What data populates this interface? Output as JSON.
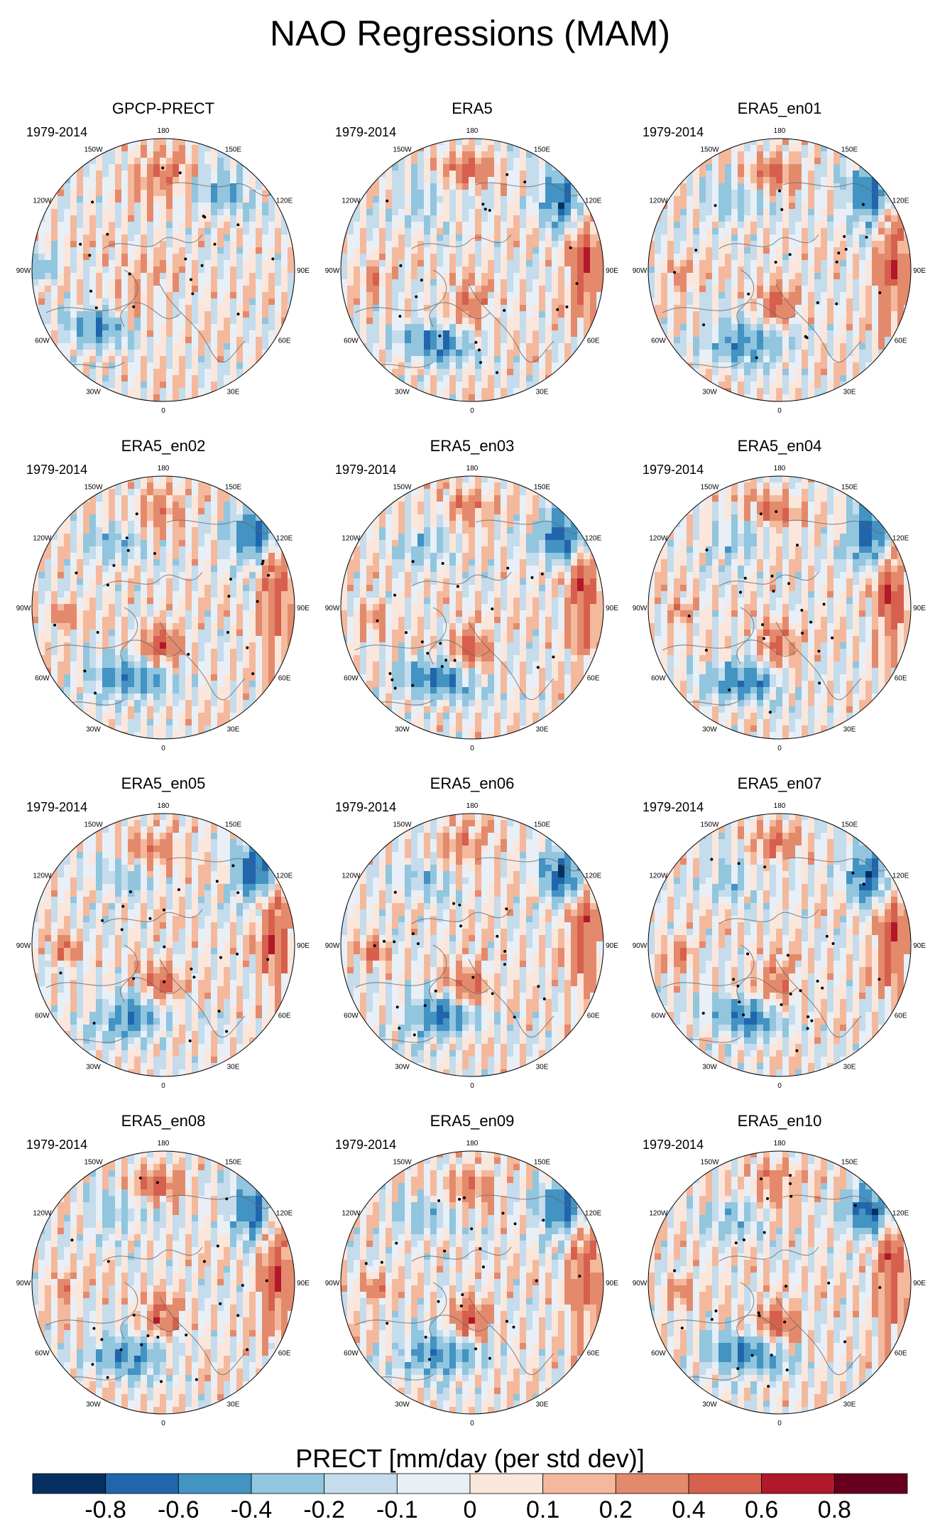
{
  "title": "NAO Regressions (MAM)",
  "panels": [
    {
      "name": "GPCP-PRECT",
      "period": "1979-2014"
    },
    {
      "name": "ERA5",
      "period": "1979-2014"
    },
    {
      "name": "ERA5_en01",
      "period": "1979-2014"
    },
    {
      "name": "ERA5_en02",
      "period": "1979-2014"
    },
    {
      "name": "ERA5_en03",
      "period": "1979-2014"
    },
    {
      "name": "ERA5_en04",
      "period": "1979-2014"
    },
    {
      "name": "ERA5_en05",
      "period": "1979-2014"
    },
    {
      "name": "ERA5_en06",
      "period": "1979-2014"
    },
    {
      "name": "ERA5_en07",
      "period": "1979-2014"
    },
    {
      "name": "ERA5_en08",
      "period": "1979-2014"
    },
    {
      "name": "ERA5_en09",
      "period": "1979-2014"
    },
    {
      "name": "ERA5_en10",
      "period": "1979-2014"
    }
  ],
  "longitude_labels": [
    "180",
    "150E",
    "120E",
    "90E",
    "60E",
    "30E",
    "0",
    "30W",
    "60W",
    "90W",
    "120W",
    "150W"
  ],
  "longitude_degrees": [
    180,
    150,
    120,
    90,
    60,
    30,
    0,
    -30,
    -60,
    -90,
    -120,
    -150
  ],
  "colorbar": {
    "title": "PRECT [mm/day (per std dev)]",
    "levels": [
      "-0.8",
      "-0.6",
      "-0.4",
      "-0.2",
      "-0.1",
      "0",
      "0.1",
      "0.2",
      "0.4",
      "0.6",
      "0.8"
    ],
    "colors": [
      "#053061",
      "#2166ac",
      "#4393c3",
      "#92c5de",
      "#c4dcec",
      "#e8eff6",
      "#fbe6dc",
      "#f4b99c",
      "#e48a6c",
      "#d6604d",
      "#b2182b",
      "#67001f"
    ]
  }
}
